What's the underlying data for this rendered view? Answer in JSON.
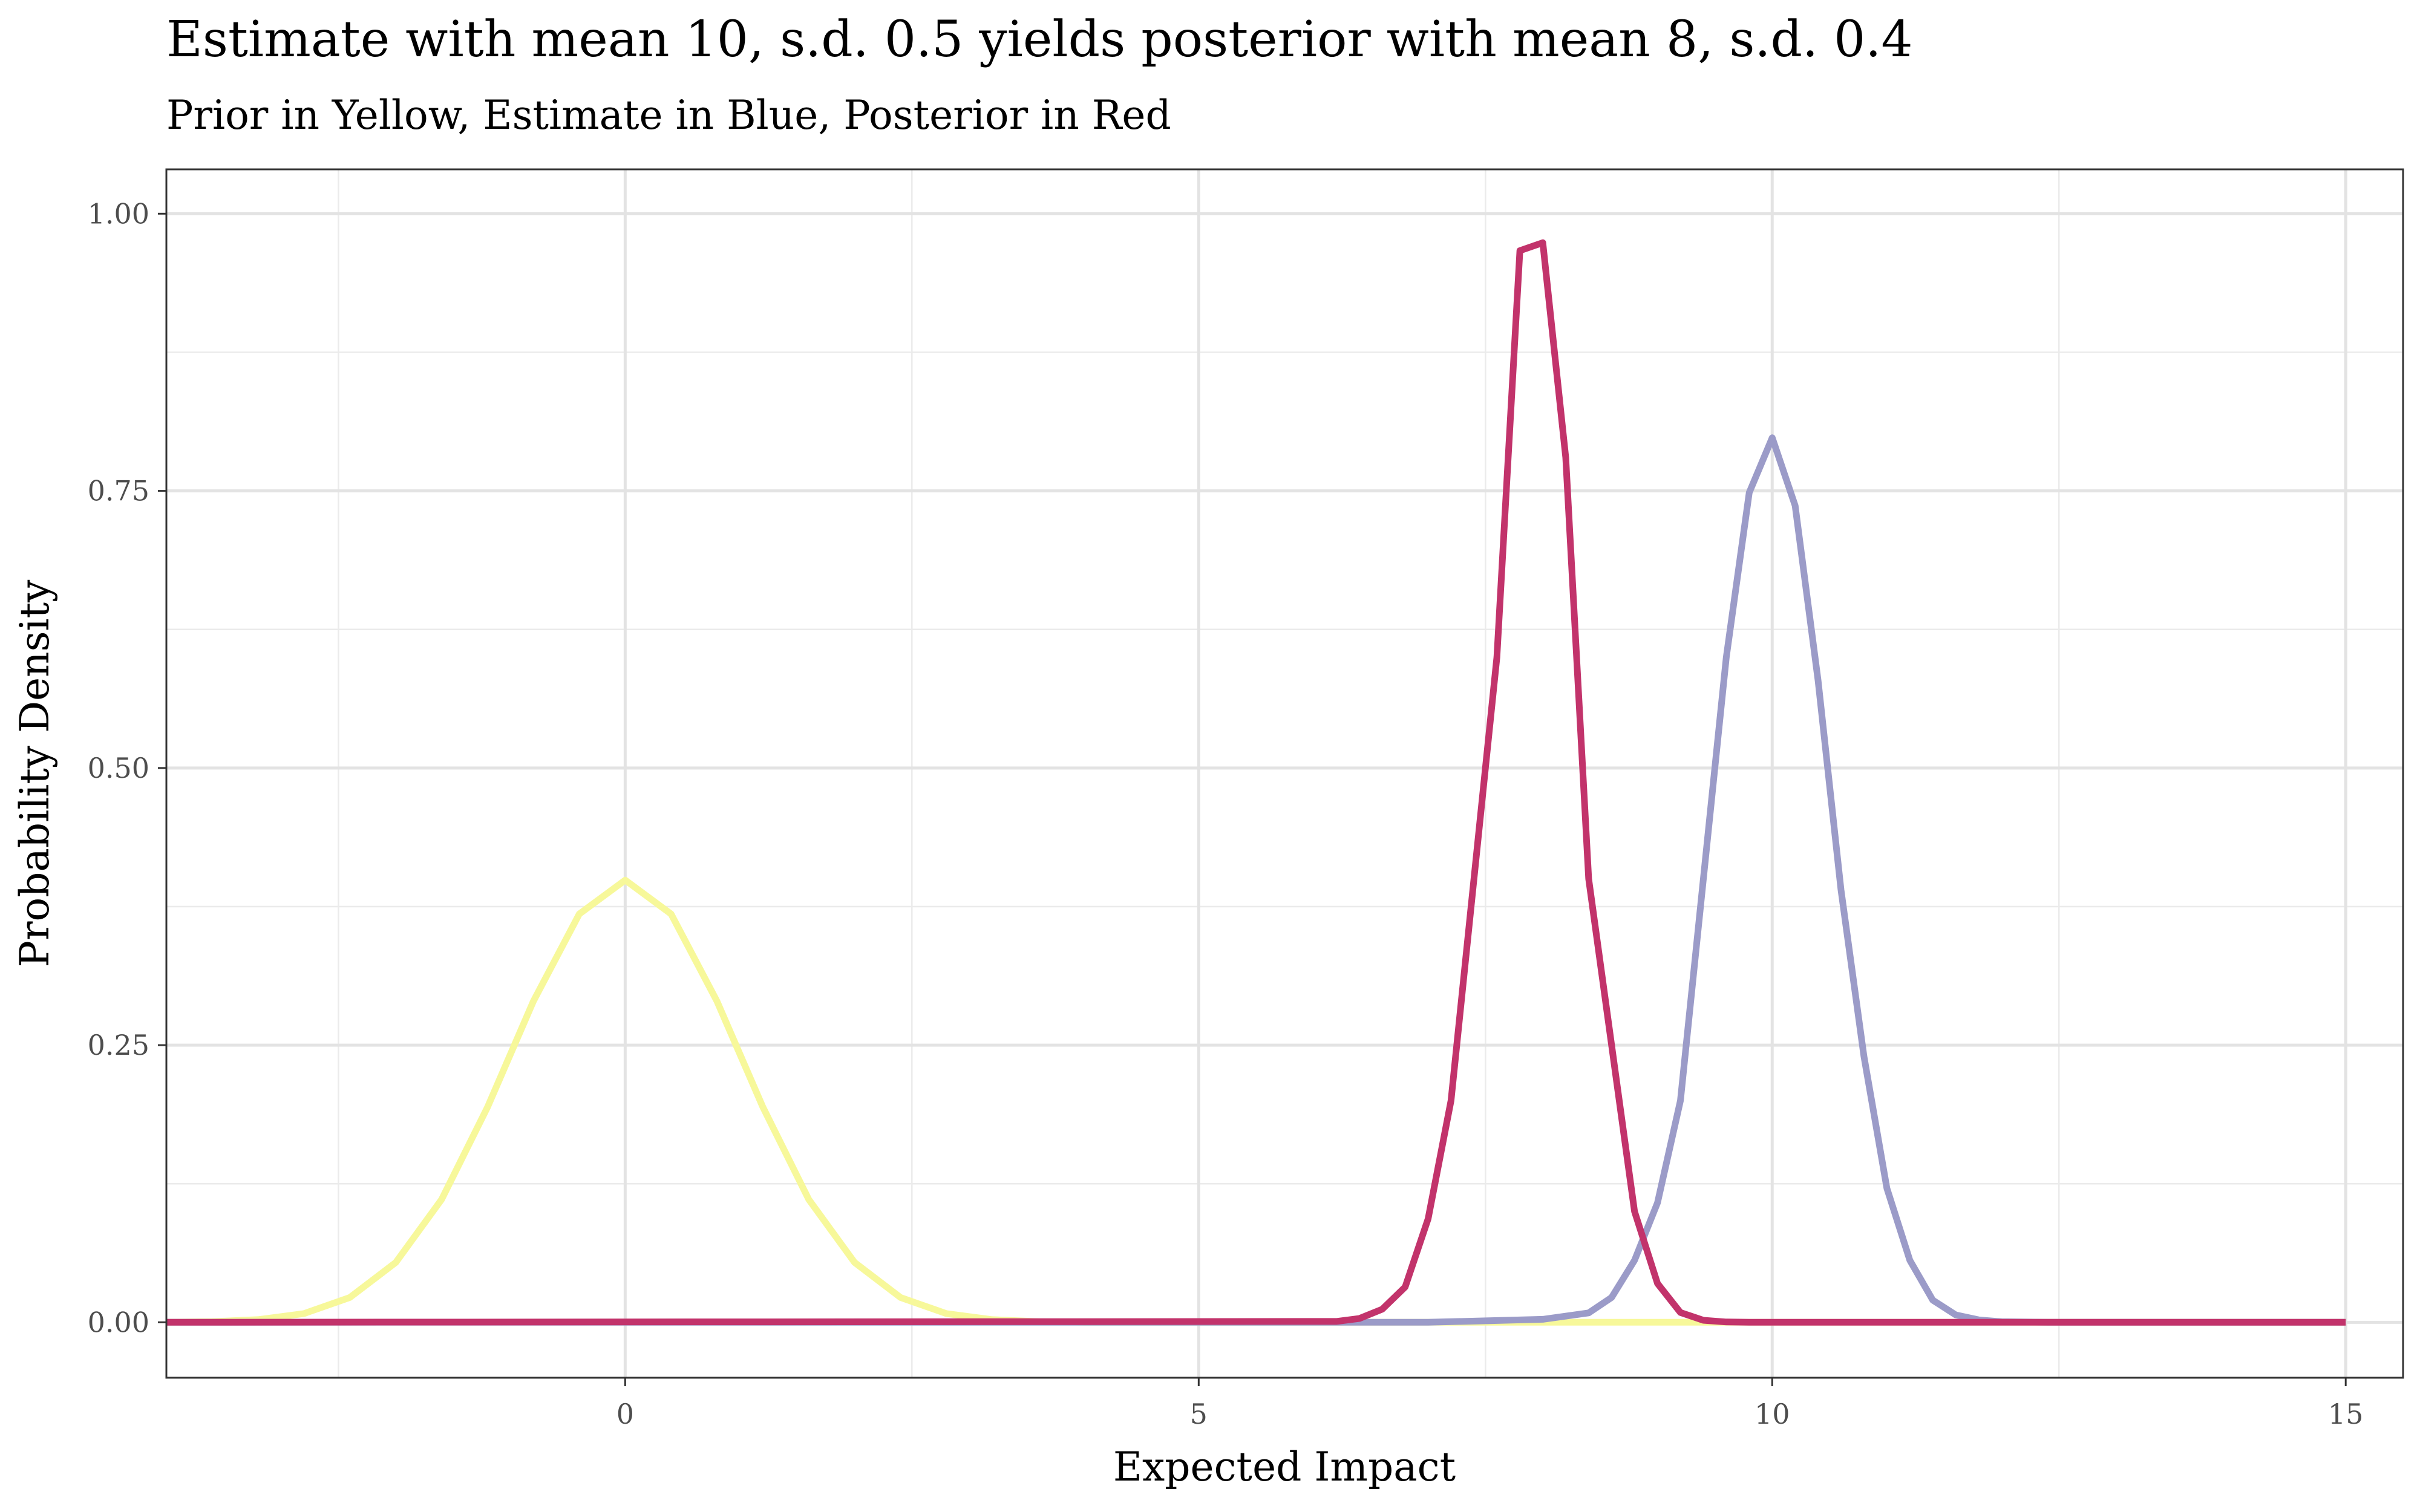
{
  "chart_data": {
    "type": "line",
    "title": "Estimate with mean 10, s.d. 0.5 yields posterior with mean 8, s.d. 0.4",
    "subtitle": "Prior in Yellow, Estimate in Blue, Posterior in Red",
    "xlabel": "Expected Impact",
    "ylabel": "Probability Density",
    "xlim": [
      -4.0,
      15.5
    ],
    "ylim": [
      -0.05,
      1.04
    ],
    "x_ticks": [
      0,
      5,
      10,
      15
    ],
    "x_tick_labels": [
      "0",
      "5",
      "10",
      "15"
    ],
    "y_ticks": [
      0,
      0.25,
      0.5,
      0.75,
      1.0
    ],
    "y_tick_labels": [
      "0.00",
      "0.25",
      "0.50",
      "0.75",
      "1.00"
    ],
    "grid": true,
    "legend": "none",
    "series": [
      {
        "color": "#f7f89a",
        "x": [
          -4.0,
          -3.6,
          -3.2,
          -2.8,
          -2.4,
          -2.0,
          -1.6,
          -1.2,
          -0.8,
          -0.4,
          0.0,
          0.4,
          0.8,
          1.2,
          1.6,
          2.0,
          2.4,
          2.8,
          3.2,
          3.6,
          4.0,
          5.0,
          6.0,
          7.0,
          8.0,
          9.0,
          9.5,
          10.0,
          12.0,
          15.0
        ],
        "y": [
          0.0001,
          0.0006,
          0.0024,
          0.0079,
          0.0224,
          0.054,
          0.1109,
          0.1942,
          0.2897,
          0.3683,
          0.3989,
          0.3683,
          0.2897,
          0.1942,
          0.1109,
          0.054,
          0.0224,
          0.0079,
          0.0024,
          0.0006,
          0.0001,
          0.0,
          0.0,
          0.0,
          0.0,
          0.0,
          0.0,
          0.0,
          0.0,
          0.0
        ]
      },
      {
        "color": "#9b9bc8",
        "x": [
          -4.0,
          7.0,
          8.0,
          8.4,
          8.6,
          8.8,
          9.0,
          9.2,
          9.4,
          9.6,
          9.8,
          10.0,
          10.2,
          10.4,
          10.6,
          10.8,
          11.0,
          11.2,
          11.4,
          11.6,
          11.8,
          12.0,
          12.4,
          15.0
        ],
        "y": [
          0.0,
          0.0,
          0.0027,
          0.0085,
          0.0224,
          0.0559,
          0.1079,
          0.2,
          0.4,
          0.6,
          0.7484,
          0.7979,
          0.7366,
          0.5789,
          0.39,
          0.2399,
          0.1209,
          0.0559,
          0.02,
          0.0067,
          0.0022,
          0.0005,
          0.0,
          0.0
        ]
      },
      {
        "color": "#c2336b",
        "x": [
          -4.0,
          6.2,
          6.4,
          6.6,
          6.8,
          7.0,
          7.2,
          7.4,
          7.6,
          7.8,
          8.0,
          8.2,
          8.4,
          8.6,
          8.8,
          9.0,
          9.2,
          9.4,
          9.6,
          9.8,
          10.0,
          15.0
        ],
        "y": [
          0.0,
          0.0008,
          0.0034,
          0.0118,
          0.0319,
          0.0933,
          0.2,
          0.4,
          0.6,
          0.9667,
          0.9738,
          0.78,
          0.4,
          0.25,
          0.1,
          0.035,
          0.0088,
          0.0018,
          0.0003,
          0.0,
          0.0,
          0.0
        ]
      }
    ]
  }
}
